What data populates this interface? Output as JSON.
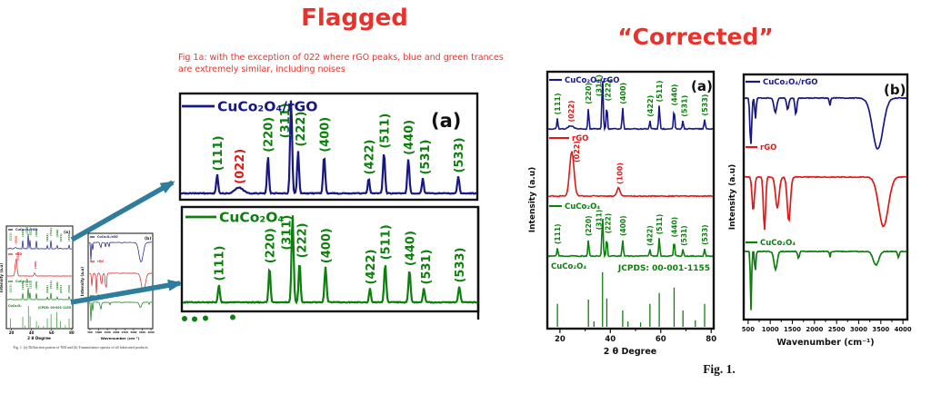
{
  "titles": {
    "flagged": "Flagged",
    "corrected": "“Corrected”",
    "fig_caption": "Fig. 1."
  },
  "note": {
    "text": "Fig 1a: with the exception of 022 where rGO peaks, blue and green trances are extremely similar, including noises"
  },
  "thumbnail": {
    "caption": "Fig. 1. (a) Diffraction pattern of NM and (b) Transmittance spectra of all fabricated products."
  },
  "colors": {
    "annotation_red": "#e8332c",
    "navy": "#181884",
    "green": "#0d7f0d",
    "red": "#e01818",
    "arrow_teal": "#2e7d9c",
    "black": "#111111"
  },
  "chart_data": [
    {
      "id": "xrd",
      "type": "line",
      "title": "",
      "xlabel": "2 θ Degree",
      "ylabel": "Intensity (a.u)",
      "xlim": [
        15,
        81
      ],
      "xticks": [
        20,
        40,
        60,
        80
      ],
      "panel_label": "(a)",
      "series": [
        {
          "name": "CuCo₂O₄/rGO",
          "color_key": "navy",
          "kind": "peaks",
          "peaks": [
            {
              "pos": 19.0,
              "h": 0.2,
              "w": 0.5,
              "label": "(111)"
            },
            {
              "pos": 24.3,
              "h": 0.06,
              "w": 2.2,
              "label": "(022)",
              "lc": "red"
            },
            {
              "pos": 31.3,
              "h": 0.4,
              "w": 0.5,
              "label": "(220)"
            },
            {
              "pos": 36.9,
              "h": 1.0,
              "w": 0.55,
              "label": "(311)",
              "dx": -7
            },
            {
              "pos": 38.6,
              "h": 0.46,
              "w": 0.5,
              "label": "(222)",
              "dx": 2
            },
            {
              "pos": 44.9,
              "h": 0.4,
              "w": 0.55,
              "label": "(400)"
            },
            {
              "pos": 55.7,
              "h": 0.16,
              "w": 0.5,
              "label": "(422)"
            },
            {
              "pos": 59.4,
              "h": 0.44,
              "w": 0.55,
              "label": "(511)"
            },
            {
              "pos": 65.3,
              "h": 0.37,
              "w": 0.55,
              "label": "(440)"
            },
            {
              "pos": 68.8,
              "h": 0.16,
              "w": 0.5,
              "label": "(531)",
              "dx": 2
            },
            {
              "pos": 77.4,
              "h": 0.18,
              "w": 0.55,
              "label": "(533)"
            }
          ]
        },
        {
          "name": "rGO",
          "color_key": "red",
          "kind": "peaks",
          "peaks": [
            {
              "pos": 24.7,
              "h": 0.82,
              "w": 1.9,
              "label": "(022)",
              "lc": "red",
              "dx": 8
            },
            {
              "pos": 43.2,
              "h": 0.15,
              "w": 1.4,
              "label": "(100)",
              "lc": "red",
              "dx": 2
            }
          ]
        },
        {
          "name": "CuCo₂O₄",
          "color_key": "green",
          "kind": "peaks",
          "peaks": [
            {
              "pos": 19.0,
              "h": 0.2,
              "w": 0.5,
              "label": "(111)"
            },
            {
              "pos": 31.3,
              "h": 0.4,
              "w": 0.5,
              "label": "(220)"
            },
            {
              "pos": 36.9,
              "h": 1.0,
              "w": 0.55,
              "label": "(311)",
              "dx": -7
            },
            {
              "pos": 38.6,
              "h": 0.46,
              "w": 0.5,
              "label": "(222)",
              "dx": 2
            },
            {
              "pos": 44.9,
              "h": 0.4,
              "w": 0.55,
              "label": "(400)"
            },
            {
              "pos": 55.7,
              "h": 0.16,
              "w": 0.5,
              "label": "(422)"
            },
            {
              "pos": 59.4,
              "h": 0.44,
              "w": 0.55,
              "label": "(511)"
            },
            {
              "pos": 65.3,
              "h": 0.37,
              "w": 0.55,
              "label": "(440)"
            },
            {
              "pos": 68.8,
              "h": 0.16,
              "w": 0.5,
              "label": "(531)",
              "dx": 2
            },
            {
              "pos": 77.4,
              "h": 0.18,
              "w": 0.55,
              "label": "(533)"
            }
          ]
        },
        {
          "name": "JCPDS: 00-001-1155",
          "label_left": "CuCo₂O₄",
          "color_key": "green",
          "kind": "sticks",
          "peaks": [
            {
              "pos": 19.0,
              "h": 0.42
            },
            {
              "pos": 31.3,
              "h": 0.5
            },
            {
              "pos": 33.5,
              "h": 0.1
            },
            {
              "pos": 36.9,
              "h": 1.0
            },
            {
              "pos": 38.6,
              "h": 0.52
            },
            {
              "pos": 44.9,
              "h": 0.3
            },
            {
              "pos": 47.0,
              "h": 0.1
            },
            {
              "pos": 52.0,
              "h": 0.08
            },
            {
              "pos": 55.7,
              "h": 0.42
            },
            {
              "pos": 59.4,
              "h": 0.62
            },
            {
              "pos": 65.3,
              "h": 0.72
            },
            {
              "pos": 68.8,
              "h": 0.3
            },
            {
              "pos": 73.7,
              "h": 0.12
            },
            {
              "pos": 77.4,
              "h": 0.42
            }
          ]
        }
      ]
    },
    {
      "id": "ftir",
      "type": "line",
      "title": "",
      "xlabel": "Wavenumber (cm⁻¹)",
      "ylabel": "Intensity (a.u)",
      "xlim": [
        400,
        4100
      ],
      "xticks": [
        500,
        1000,
        1500,
        2000,
        2500,
        3000,
        3500,
        4000
      ],
      "panel_label": "(b)",
      "series": [
        {
          "name": "CuCo₂O₄/rGO",
          "color_key": "navy",
          "kind": "dips",
          "dips": [
            [
              560,
              0.72,
              45
            ],
            [
              665,
              0.32,
              35
            ],
            [
              1115,
              0.22,
              70
            ],
            [
              1395,
              0.18,
              55
            ],
            [
              1580,
              0.26,
              45
            ],
            [
              2350,
              0.12,
              30
            ],
            [
              3430,
              0.78,
              260
            ]
          ]
        },
        {
          "name": "rGO",
          "color_key": "red",
          "kind": "dips",
          "dips": [
            [
              615,
              0.6,
              60
            ],
            [
              870,
              0.95,
              55
            ],
            [
              1160,
              0.55,
              90
            ],
            [
              1420,
              0.78,
              80
            ],
            [
              3560,
              0.88,
              240
            ]
          ]
        },
        {
          "name": "CuCo₂O₄",
          "color_key": "green",
          "kind": "dips",
          "dips": [
            [
              565,
              0.95,
              30
            ],
            [
              660,
              0.35,
              30
            ],
            [
              1120,
              0.3,
              80
            ],
            [
              1640,
              0.12,
              40
            ],
            [
              2350,
              0.1,
              25
            ],
            [
              3390,
              0.22,
              140
            ],
            [
              3900,
              0.1,
              40
            ]
          ]
        }
      ]
    }
  ]
}
